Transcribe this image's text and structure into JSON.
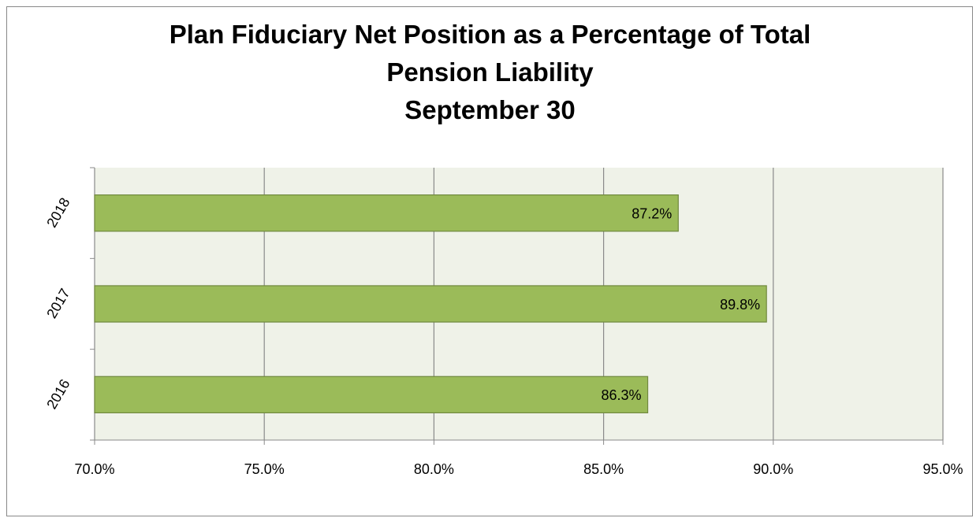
{
  "chart_data": {
    "type": "hbar",
    "title": "Plan Fiduciary Net Position as a Percentage of Total Pension Liability",
    "subtitle": "September 30",
    "categories": [
      "2018",
      "2017",
      "2016"
    ],
    "values": [
      87.2,
      89.8,
      86.3
    ],
    "value_labels": [
      "87.2%",
      "89.8%",
      "86.3%"
    ],
    "color": "#9bbb59",
    "xlim": [
      70,
      95
    ],
    "xticks": [
      {
        "value": 70,
        "label": "70.0%"
      },
      {
        "value": 75,
        "label": "75.0%"
      },
      {
        "value": 80,
        "label": "80.0%"
      },
      {
        "value": 85,
        "label": "85.0%"
      },
      {
        "value": 90,
        "label": "90.0%"
      },
      {
        "value": 95,
        "label": "95.0%"
      }
    ],
    "grid": true
  }
}
